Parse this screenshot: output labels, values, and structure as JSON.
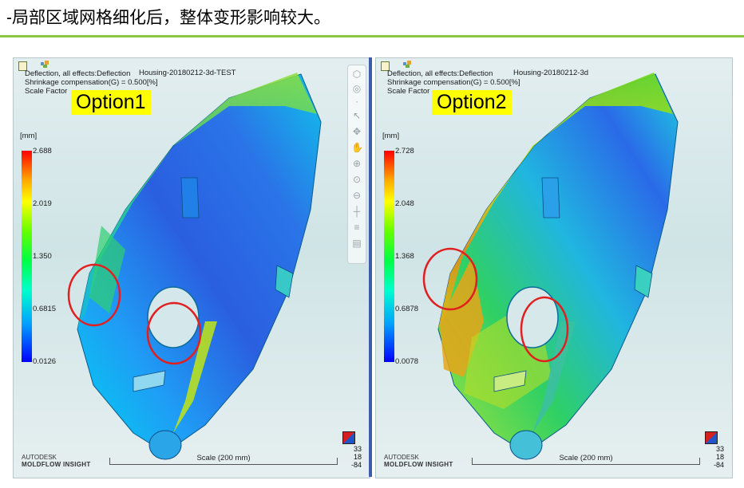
{
  "heading": "-局部区域网格细化后，整体变形影响较大。",
  "colors": {
    "rule": "#8cc63f",
    "highlight": "#ffff00",
    "circle": "#e02020",
    "divider": "#3a5fa8"
  },
  "panels": [
    {
      "info_line1": "Deflection, all effects:Deflection",
      "info_line2": "Shrinkage compensation(G) = 0.500[%]",
      "info_line3": "Scale Factor",
      "model_name": "Housing-20180212-3d-TEST",
      "option_label": "Option1",
      "unit": "[mm]",
      "ticks": [
        "2.688",
        "2.019",
        "1.350",
        "0.6815",
        "0.0126"
      ],
      "brand_top": "AUTODESK",
      "brand_bottom": "MOLDFLOW INSIGHT",
      "scale_label": "Scale (200 mm)",
      "axis_numbers": [
        "33",
        "18",
        "-84"
      ]
    },
    {
      "info_line1": "Deflection, all effects:Deflection",
      "info_line2": "Shrinkage compensation(G) = 0.500[%]",
      "info_line3": "Scale Factor",
      "model_name": "Housing-20180212-3d",
      "option_label": "Option2",
      "unit": "[mm]",
      "ticks": [
        "2.728",
        "2.048",
        "1.368",
        "0.6878",
        "0.0078"
      ],
      "brand_top": "AUTODESK",
      "brand_bottom": "MOLDFLOW INSIGHT",
      "scale_label": "Scale (200 mm)",
      "axis_numbers": [
        "33",
        "18",
        "-84"
      ]
    }
  ],
  "toolbar_icons": [
    "cube-view-icon",
    "rotate-icon",
    "dot-icon",
    "select-arrow-icon",
    "move-icon",
    "pan-hand-icon",
    "zoom-in-icon",
    "zoom-fit-icon",
    "zoom-out-icon",
    "center-icon",
    "layers-icon",
    "clipboard-icon"
  ]
}
